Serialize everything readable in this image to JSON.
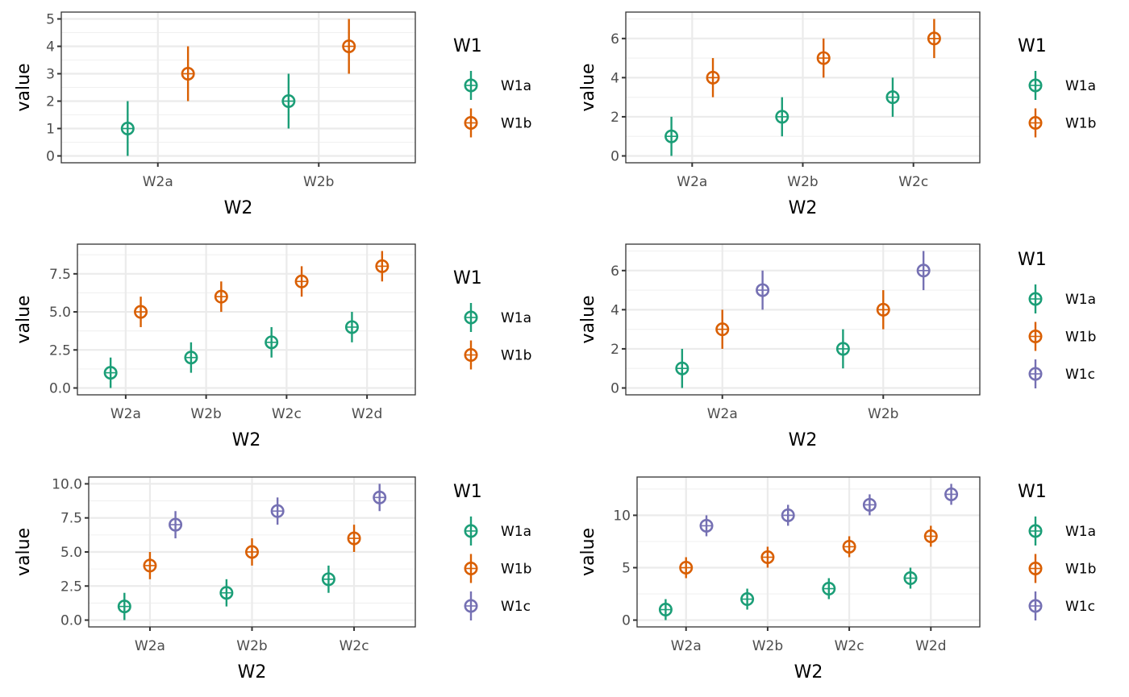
{
  "figure": {
    "description": "Six ggplot2 point-range panels of value by W2 grouped by W1"
  },
  "chart_data": [
    {
      "type": "scatter",
      "title": "",
      "xlabel": "W2",
      "ylabel": "value",
      "categories": [
        "W2a",
        "W2b"
      ],
      "yticks": [
        "0",
        "1",
        "2",
        "3",
        "4",
        "5"
      ],
      "ytick_values": [
        0,
        1,
        2,
        3,
        4,
        5
      ],
      "grid": true,
      "legend": {
        "title": "W1",
        "position": "right",
        "entries": [
          "W1a",
          "W1b"
        ]
      },
      "series": [
        {
          "name": "W1a",
          "color": "#1B9E77",
          "values": [
            1,
            2
          ],
          "lower": [
            0,
            1
          ],
          "upper": [
            2,
            3
          ]
        },
        {
          "name": "W1b",
          "color": "#D95F02",
          "values": [
            3,
            4
          ],
          "lower": [
            2,
            3
          ],
          "upper": [
            4,
            5
          ]
        }
      ]
    },
    {
      "type": "scatter",
      "title": "",
      "xlabel": "W2",
      "ylabel": "value",
      "categories": [
        "W2a",
        "W2b",
        "W2c"
      ],
      "yticks": [
        "0",
        "2",
        "4",
        "6"
      ],
      "ytick_values": [
        0,
        2,
        4,
        6
      ],
      "grid": true,
      "legend": {
        "title": "W1",
        "position": "right",
        "entries": [
          "W1a",
          "W1b"
        ]
      },
      "series": [
        {
          "name": "W1a",
          "color": "#1B9E77",
          "values": [
            1,
            2,
            3
          ],
          "lower": [
            0,
            1,
            2
          ],
          "upper": [
            2,
            3,
            4
          ]
        },
        {
          "name": "W1b",
          "color": "#D95F02",
          "values": [
            4,
            5,
            6
          ],
          "lower": [
            3,
            4,
            5
          ],
          "upper": [
            5,
            6,
            7
          ]
        }
      ]
    },
    {
      "type": "scatter",
      "title": "",
      "xlabel": "W2",
      "ylabel": "value",
      "categories": [
        "W2a",
        "W2b",
        "W2c",
        "W2d"
      ],
      "yticks": [
        "0.0",
        "2.5",
        "5.0",
        "7.5"
      ],
      "ytick_values": [
        0,
        2.5,
        5,
        7.5
      ],
      "grid": true,
      "legend": {
        "title": "W1",
        "position": "right",
        "entries": [
          "W1a",
          "W1b"
        ]
      },
      "series": [
        {
          "name": "W1a",
          "color": "#1B9E77",
          "values": [
            1,
            2,
            3,
            4
          ],
          "lower": [
            0,
            1,
            2,
            3
          ],
          "upper": [
            2,
            3,
            4,
            5
          ]
        },
        {
          "name": "W1b",
          "color": "#D95F02",
          "values": [
            5,
            6,
            7,
            8
          ],
          "lower": [
            4,
            5,
            6,
            7
          ],
          "upper": [
            6,
            7,
            8,
            9
          ]
        }
      ]
    },
    {
      "type": "scatter",
      "title": "",
      "xlabel": "W2",
      "ylabel": "value",
      "categories": [
        "W2a",
        "W2b"
      ],
      "yticks": [
        "0",
        "2",
        "4",
        "6"
      ],
      "ytick_values": [
        0,
        2,
        4,
        6
      ],
      "grid": true,
      "legend": {
        "title": "W1",
        "position": "right",
        "entries": [
          "W1a",
          "W1b",
          "W1c"
        ]
      },
      "series": [
        {
          "name": "W1a",
          "color": "#1B9E77",
          "values": [
            1,
            2
          ],
          "lower": [
            0,
            1
          ],
          "upper": [
            2,
            3
          ]
        },
        {
          "name": "W1b",
          "color": "#D95F02",
          "values": [
            3,
            4
          ],
          "lower": [
            2,
            3
          ],
          "upper": [
            4,
            5
          ]
        },
        {
          "name": "W1c",
          "color": "#7570B3",
          "values": [
            5,
            6
          ],
          "lower": [
            4,
            5
          ],
          "upper": [
            6,
            7
          ]
        }
      ]
    },
    {
      "type": "scatter",
      "title": "",
      "xlabel": "W2",
      "ylabel": "value",
      "categories": [
        "W2a",
        "W2b",
        "W2c"
      ],
      "yticks": [
        "0.0",
        "2.5",
        "5.0",
        "7.5",
        "10.0"
      ],
      "ytick_values": [
        0,
        2.5,
        5,
        7.5,
        10
      ],
      "grid": true,
      "legend": {
        "title": "W1",
        "position": "right",
        "entries": [
          "W1a",
          "W1b",
          "W1c"
        ]
      },
      "series": [
        {
          "name": "W1a",
          "color": "#1B9E77",
          "values": [
            1,
            2,
            3
          ],
          "lower": [
            0,
            1,
            2
          ],
          "upper": [
            2,
            3,
            4
          ]
        },
        {
          "name": "W1b",
          "color": "#D95F02",
          "values": [
            4,
            5,
            6
          ],
          "lower": [
            3,
            4,
            5
          ],
          "upper": [
            5,
            6,
            7
          ]
        },
        {
          "name": "W1c",
          "color": "#7570B3",
          "values": [
            7,
            8,
            9
          ],
          "lower": [
            6,
            7,
            8
          ],
          "upper": [
            8,
            9,
            10
          ]
        }
      ]
    },
    {
      "type": "scatter",
      "title": "",
      "xlabel": "W2",
      "ylabel": "value",
      "categories": [
        "W2a",
        "W2b",
        "W2c",
        "W2d"
      ],
      "yticks": [
        "0",
        "5",
        "10"
      ],
      "ytick_values": [
        0,
        5,
        10
      ],
      "grid": true,
      "legend": {
        "title": "W1",
        "position": "right",
        "entries": [
          "W1a",
          "W1b",
          "W1c"
        ]
      },
      "series": [
        {
          "name": "W1a",
          "color": "#1B9E77",
          "values": [
            1,
            2,
            3,
            4
          ],
          "lower": [
            0,
            1,
            2,
            3
          ],
          "upper": [
            2,
            3,
            4,
            5
          ]
        },
        {
          "name": "W1b",
          "color": "#D95F02",
          "values": [
            5,
            6,
            7,
            8
          ],
          "lower": [
            4,
            5,
            6,
            7
          ],
          "upper": [
            6,
            7,
            8,
            9
          ]
        },
        {
          "name": "W1c",
          "color": "#7570B3",
          "values": [
            9,
            10,
            11,
            12
          ],
          "lower": [
            8,
            9,
            10,
            11
          ],
          "upper": [
            10,
            11,
            12,
            13
          ]
        }
      ]
    }
  ]
}
